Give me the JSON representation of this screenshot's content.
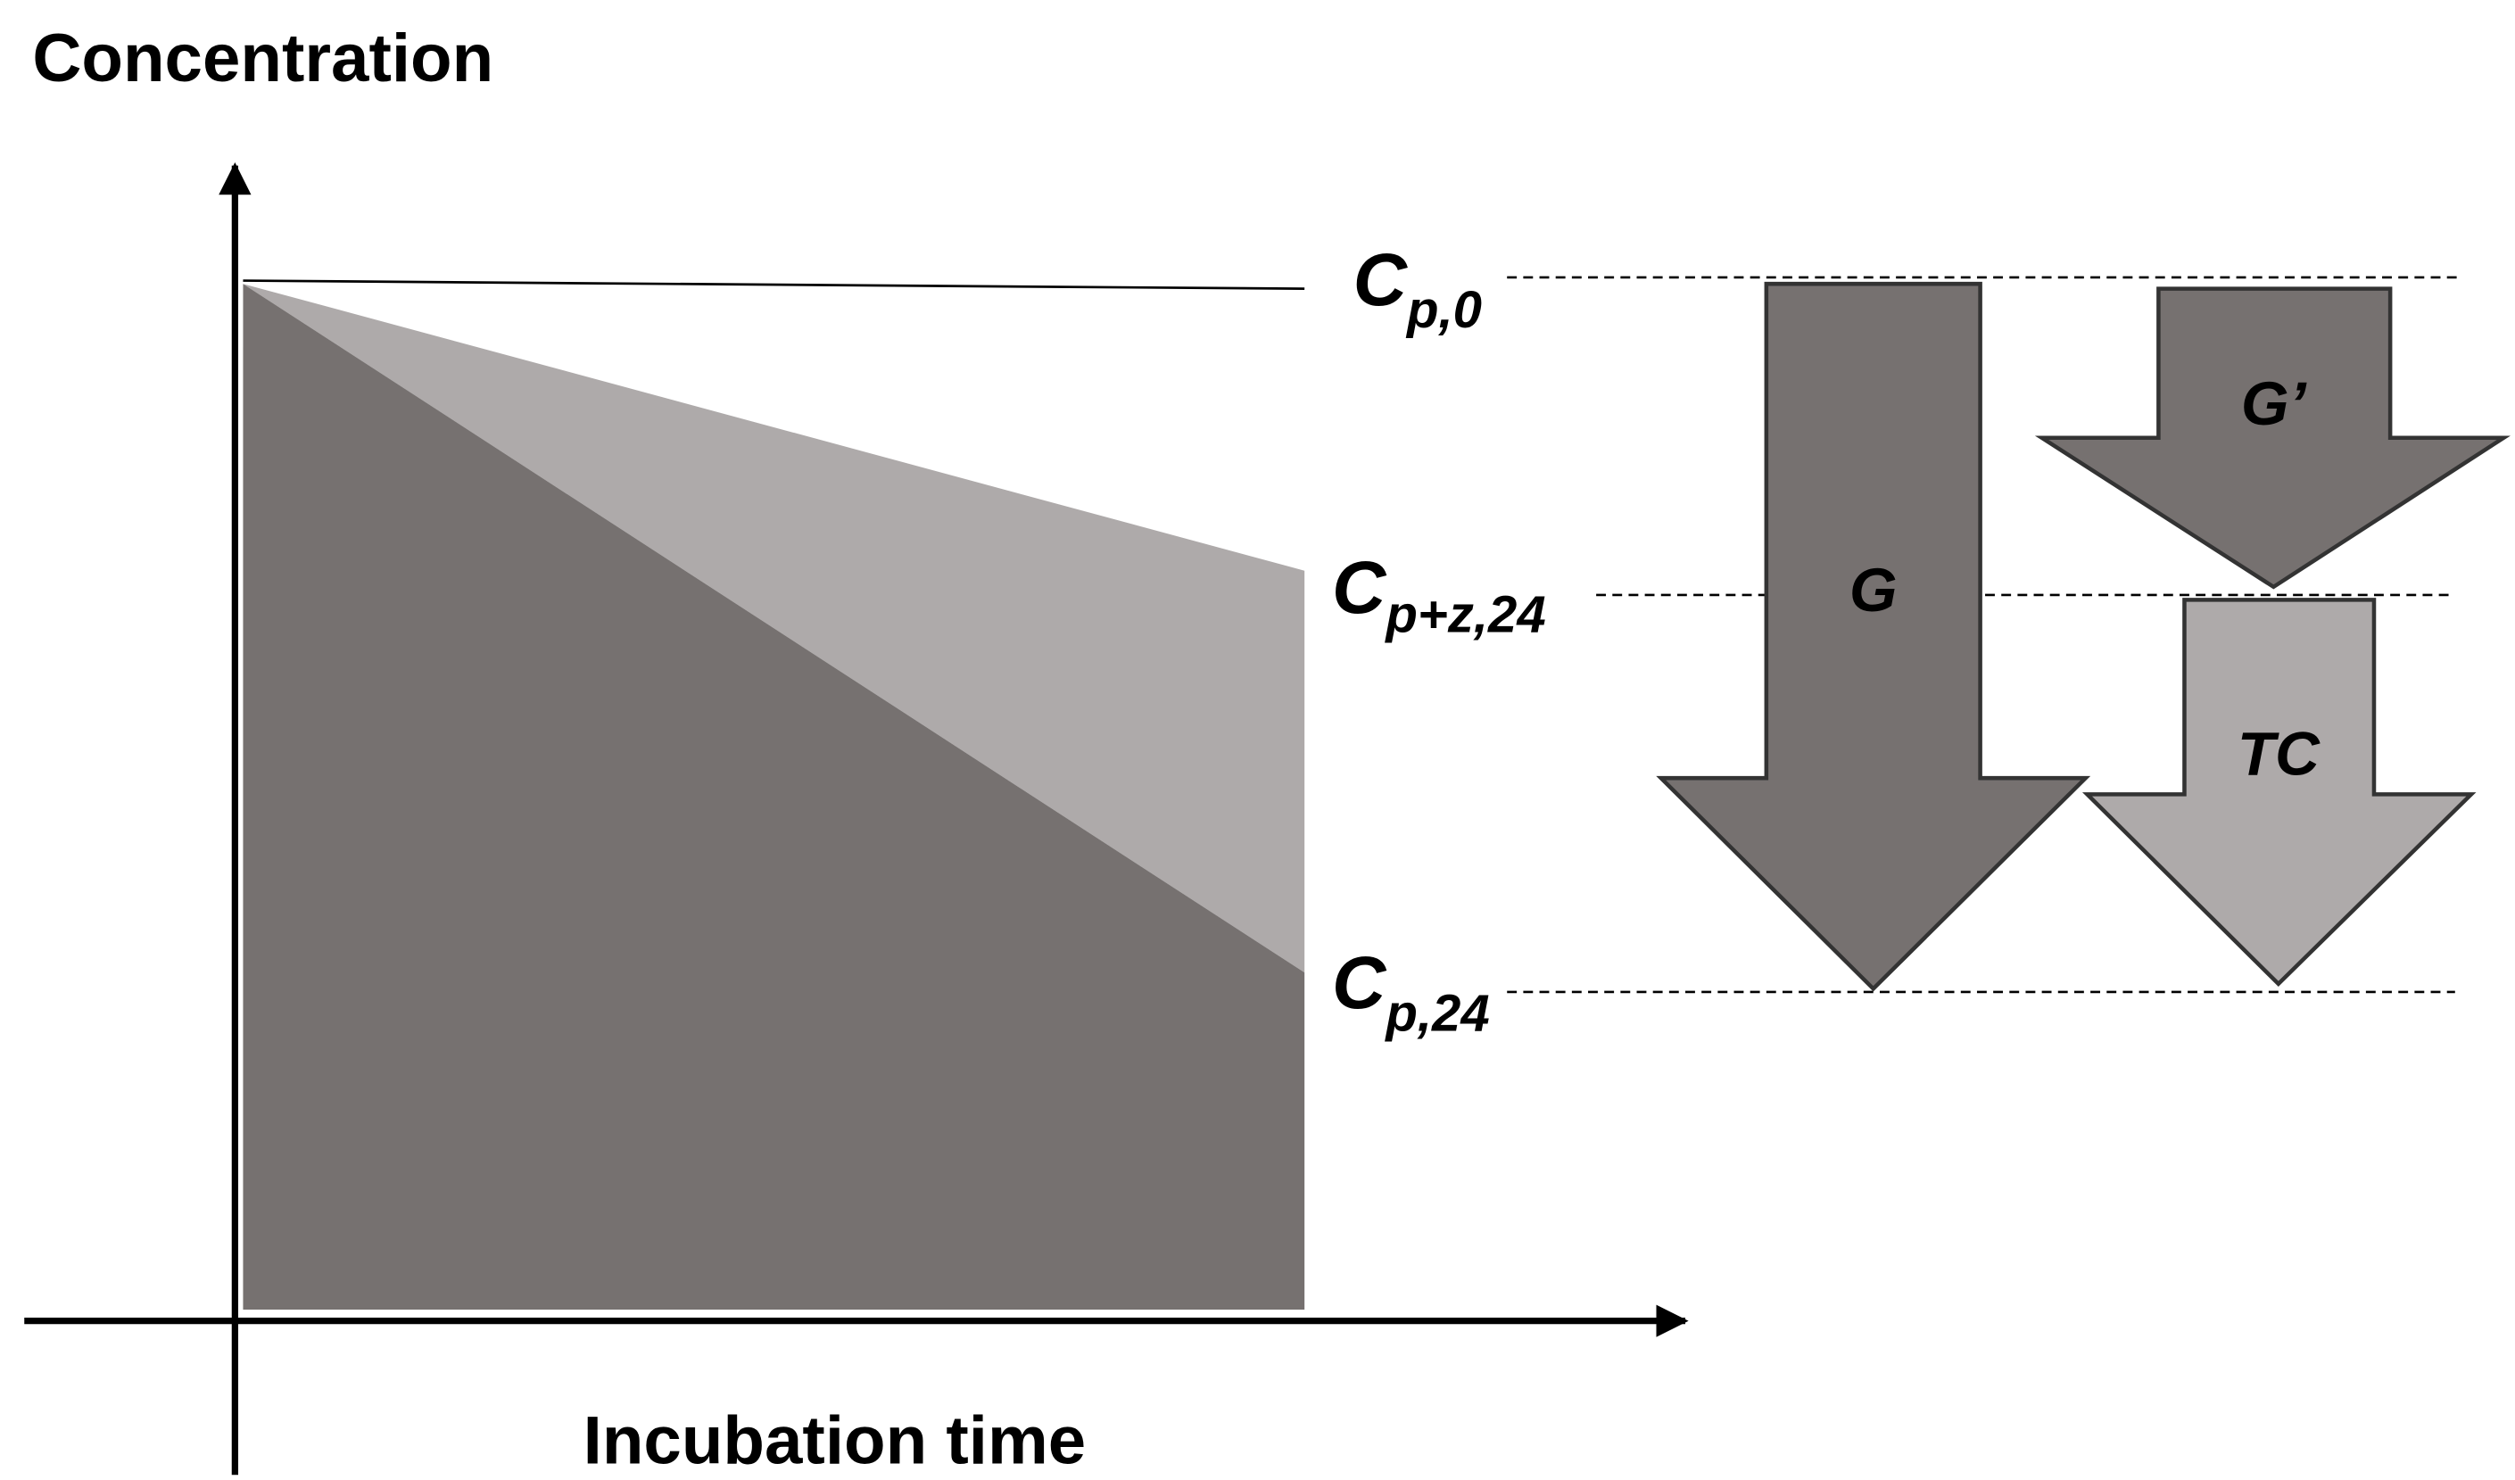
{
  "axes": {
    "y_label": "Concentration",
    "x_label": "Incubation time"
  },
  "levels": [
    {
      "main": "C",
      "sub": "p,0"
    },
    {
      "main": "C",
      "sub": "p+z,24"
    },
    {
      "main": "C",
      "sub": "p,24"
    }
  ],
  "arrows": [
    {
      "label": "G"
    },
    {
      "label": "G’"
    },
    {
      "label": "TC"
    }
  ]
}
